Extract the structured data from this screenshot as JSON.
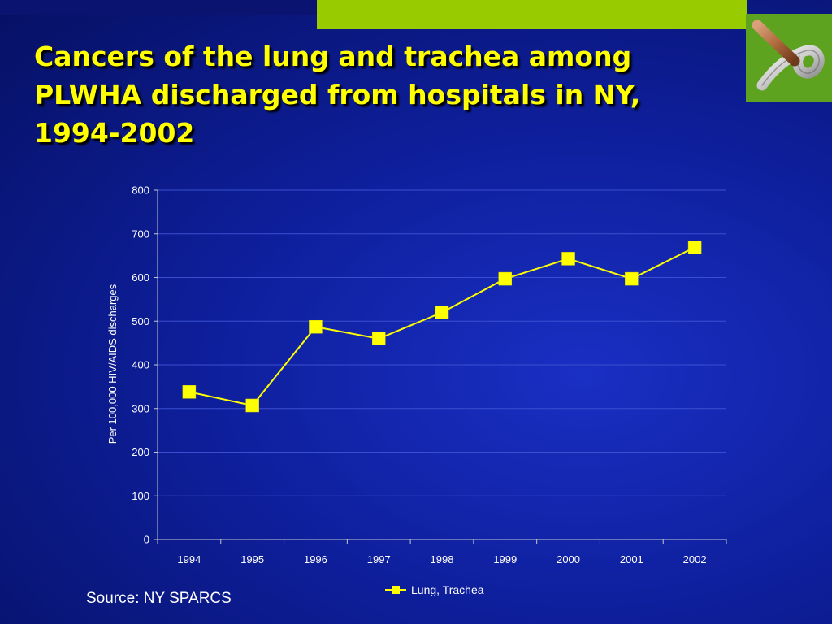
{
  "slide": {
    "title": "Cancers of the lung and trachea among PLWHA discharged from hospitals in NY, 1994-2002",
    "source": "Source: NY SPARCS",
    "colors": {
      "title": "#ffff00",
      "accent_green": "#99cc00",
      "logo_green": "#5ea31f",
      "series": "#ffff00"
    },
    "logo_icon": "ribbon-logo-icon"
  },
  "chart_data": {
    "type": "line",
    "categories": [
      "1994",
      "1995",
      "1996",
      "1997",
      "1998",
      "1999",
      "2000",
      "2001",
      "2002"
    ],
    "series": [
      {
        "name": "Lung, Trachea",
        "values": [
          338,
          307,
          487,
          460,
          520,
          597,
          643,
          597,
          669
        ],
        "color": "#ffff00",
        "marker": "square"
      }
    ],
    "title": "",
    "xlabel": "",
    "ylabel": "Per 100,000 HIV/AIDS discharges",
    "ylim": [
      0,
      800
    ],
    "yticks": [
      0,
      100,
      200,
      300,
      400,
      500,
      600,
      700,
      800
    ],
    "grid": true,
    "legend_position": "bottom"
  }
}
